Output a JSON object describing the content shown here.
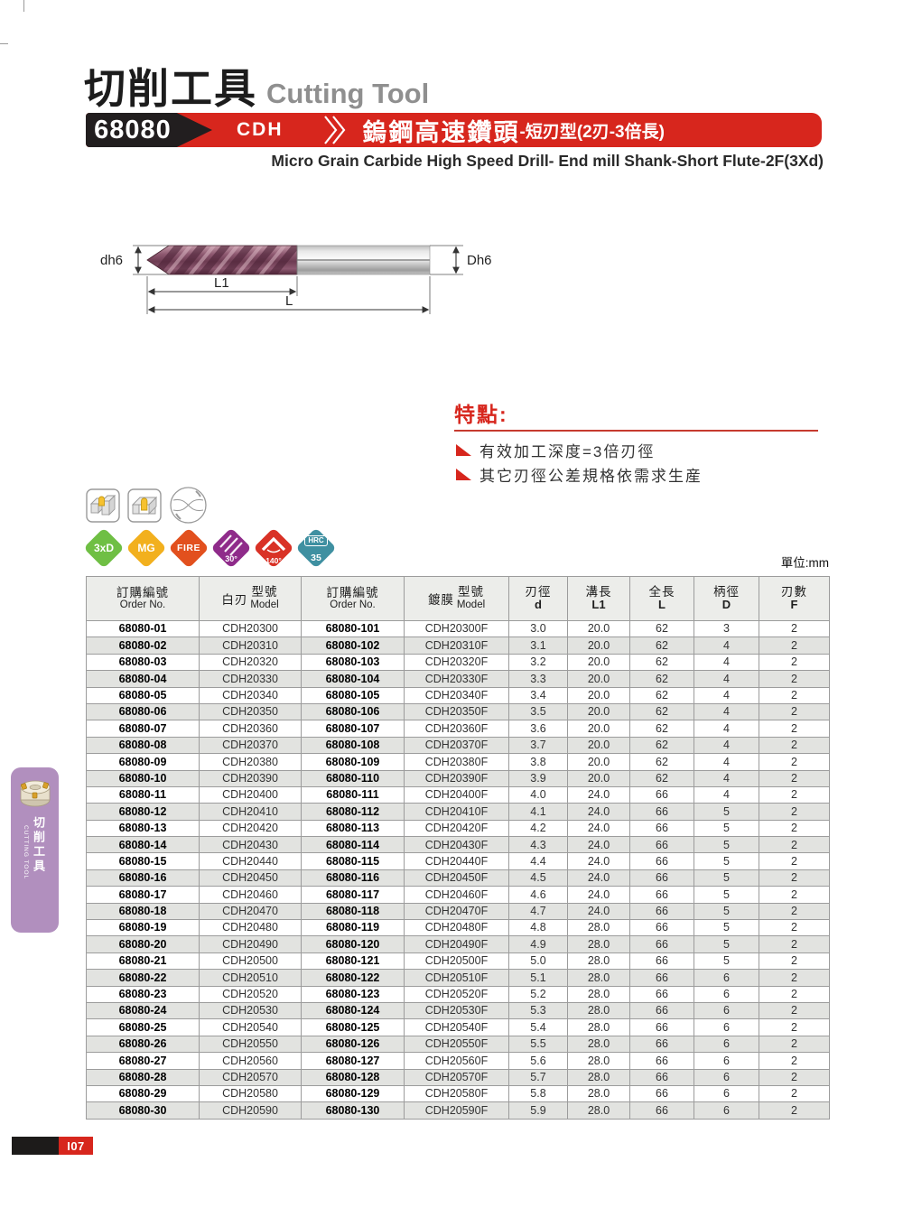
{
  "page": {
    "title_zh": "切削工具",
    "title_en": "Cutting Tool",
    "unit_label": "單位:mm",
    "page_number": "I07"
  },
  "banner": {
    "code": "68080",
    "series": "CDH",
    "title_zh": "鎢鋼高速鑽頭",
    "title_zh_suffix": "-短刃型(2刃-3倍長)",
    "subtitle_en": "Micro Grain Carbide High Speed Drill- End mill Shank-Short Flute-2F(3Xd)"
  },
  "diagram": {
    "labels": {
      "left": "dh6",
      "right": "Dh6",
      "flute": "L1",
      "overall": "L"
    }
  },
  "features": {
    "heading": "特點:",
    "items": [
      "有效加工深度=3倍刃徑",
      "其它刃徑公差規格依需求生産"
    ]
  },
  "badges": [
    {
      "name": "3xd",
      "label": "3xD",
      "type": "plain",
      "color": "#6fbf44"
    },
    {
      "name": "mg",
      "label": "MG",
      "type": "plain",
      "color": "#f2b01e"
    },
    {
      "name": "fire",
      "label": "FIRE",
      "type": "plain",
      "color": "#e2501e"
    },
    {
      "name": "helix-30",
      "label": "30°",
      "type": "spiral",
      "color": "#8f2b8a"
    },
    {
      "name": "point-140",
      "label": "140°",
      "type": "angle",
      "color": "#d93226"
    },
    {
      "name": "hrc35",
      "label": "HRC",
      "sub": "35",
      "type": "hrc",
      "color": "#3f90a1"
    }
  ],
  "colors": {
    "accent_red": "#d7261d",
    "chip_black": "#221e1f",
    "gray_title": "#8f8f8f",
    "sidebar_purple": "#b18fbe",
    "table_header_bg": "#ecedea",
    "row_alt_bg": "#e2e3e0"
  },
  "sidebar": {
    "zh": "切削工具",
    "en": "CUTTING TOOL"
  },
  "table": {
    "headers": {
      "order_no": {
        "zh": "訂購編號",
        "en": "Order No."
      },
      "model_plain": {
        "side": "白刃",
        "zh": "型號",
        "en": "Model"
      },
      "order_no2": {
        "zh": "訂購編號",
        "en": "Order No."
      },
      "model_coated": {
        "side": "鍍膜",
        "zh": "型號",
        "en": "Model"
      },
      "d": {
        "zh": "刃徑",
        "en": "d"
      },
      "l1": {
        "zh": "溝長",
        "en": "L1"
      },
      "l": {
        "zh": "全長",
        "en": "L"
      },
      "shank": {
        "zh": "柄徑",
        "en": "D"
      },
      "flutes": {
        "zh": "刃數",
        "en": "F"
      }
    },
    "rows": [
      [
        "68080-01",
        "CDH20300",
        "68080-101",
        "CDH20300F",
        "3.0",
        "20.0",
        "62",
        "3",
        "2"
      ],
      [
        "68080-02",
        "CDH20310",
        "68080-102",
        "CDH20310F",
        "3.1",
        "20.0",
        "62",
        "4",
        "2"
      ],
      [
        "68080-03",
        "CDH20320",
        "68080-103",
        "CDH20320F",
        "3.2",
        "20.0",
        "62",
        "4",
        "2"
      ],
      [
        "68080-04",
        "CDH20330",
        "68080-104",
        "CDH20330F",
        "3.3",
        "20.0",
        "62",
        "4",
        "2"
      ],
      [
        "68080-05",
        "CDH20340",
        "68080-105",
        "CDH20340F",
        "3.4",
        "20.0",
        "62",
        "4",
        "2"
      ],
      [
        "68080-06",
        "CDH20350",
        "68080-106",
        "CDH20350F",
        "3.5",
        "20.0",
        "62",
        "4",
        "2"
      ],
      [
        "68080-07",
        "CDH20360",
        "68080-107",
        "CDH20360F",
        "3.6",
        "20.0",
        "62",
        "4",
        "2"
      ],
      [
        "68080-08",
        "CDH20370",
        "68080-108",
        "CDH20370F",
        "3.7",
        "20.0",
        "62",
        "4",
        "2"
      ],
      [
        "68080-09",
        "CDH20380",
        "68080-109",
        "CDH20380F",
        "3.8",
        "20.0",
        "62",
        "4",
        "2"
      ],
      [
        "68080-10",
        "CDH20390",
        "68080-110",
        "CDH20390F",
        "3.9",
        "20.0",
        "62",
        "4",
        "2"
      ],
      [
        "68080-11",
        "CDH20400",
        "68080-111",
        "CDH20400F",
        "4.0",
        "24.0",
        "66",
        "4",
        "2"
      ],
      [
        "68080-12",
        "CDH20410",
        "68080-112",
        "CDH20410F",
        "4.1",
        "24.0",
        "66",
        "5",
        "2"
      ],
      [
        "68080-13",
        "CDH20420",
        "68080-113",
        "CDH20420F",
        "4.2",
        "24.0",
        "66",
        "5",
        "2"
      ],
      [
        "68080-14",
        "CDH20430",
        "68080-114",
        "CDH20430F",
        "4.3",
        "24.0",
        "66",
        "5",
        "2"
      ],
      [
        "68080-15",
        "CDH20440",
        "68080-115",
        "CDH20440F",
        "4.4",
        "24.0",
        "66",
        "5",
        "2"
      ],
      [
        "68080-16",
        "CDH20450",
        "68080-116",
        "CDH20450F",
        "4.5",
        "24.0",
        "66",
        "5",
        "2"
      ],
      [
        "68080-17",
        "CDH20460",
        "68080-117",
        "CDH20460F",
        "4.6",
        "24.0",
        "66",
        "5",
        "2"
      ],
      [
        "68080-18",
        "CDH20470",
        "68080-118",
        "CDH20470F",
        "4.7",
        "24.0",
        "66",
        "5",
        "2"
      ],
      [
        "68080-19",
        "CDH20480",
        "68080-119",
        "CDH20480F",
        "4.8",
        "28.0",
        "66",
        "5",
        "2"
      ],
      [
        "68080-20",
        "CDH20490",
        "68080-120",
        "CDH20490F",
        "4.9",
        "28.0",
        "66",
        "5",
        "2"
      ],
      [
        "68080-21",
        "CDH20500",
        "68080-121",
        "CDH20500F",
        "5.0",
        "28.0",
        "66",
        "5",
        "2"
      ],
      [
        "68080-22",
        "CDH20510",
        "68080-122",
        "CDH20510F",
        "5.1",
        "28.0",
        "66",
        "6",
        "2"
      ],
      [
        "68080-23",
        "CDH20520",
        "68080-123",
        "CDH20520F",
        "5.2",
        "28.0",
        "66",
        "6",
        "2"
      ],
      [
        "68080-24",
        "CDH20530",
        "68080-124",
        "CDH20530F",
        "5.3",
        "28.0",
        "66",
        "6",
        "2"
      ],
      [
        "68080-25",
        "CDH20540",
        "68080-125",
        "CDH20540F",
        "5.4",
        "28.0",
        "66",
        "6",
        "2"
      ],
      [
        "68080-26",
        "CDH20550",
        "68080-126",
        "CDH20550F",
        "5.5",
        "28.0",
        "66",
        "6",
        "2"
      ],
      [
        "68080-27",
        "CDH20560",
        "68080-127",
        "CDH20560F",
        "5.6",
        "28.0",
        "66",
        "6",
        "2"
      ],
      [
        "68080-28",
        "CDH20570",
        "68080-128",
        "CDH20570F",
        "5.7",
        "28.0",
        "66",
        "6",
        "2"
      ],
      [
        "68080-29",
        "CDH20580",
        "68080-129",
        "CDH20580F",
        "5.8",
        "28.0",
        "66",
        "6",
        "2"
      ],
      [
        "68080-30",
        "CDH20590",
        "68080-130",
        "CDH20590F",
        "5.9",
        "28.0",
        "66",
        "6",
        "2"
      ]
    ]
  }
}
